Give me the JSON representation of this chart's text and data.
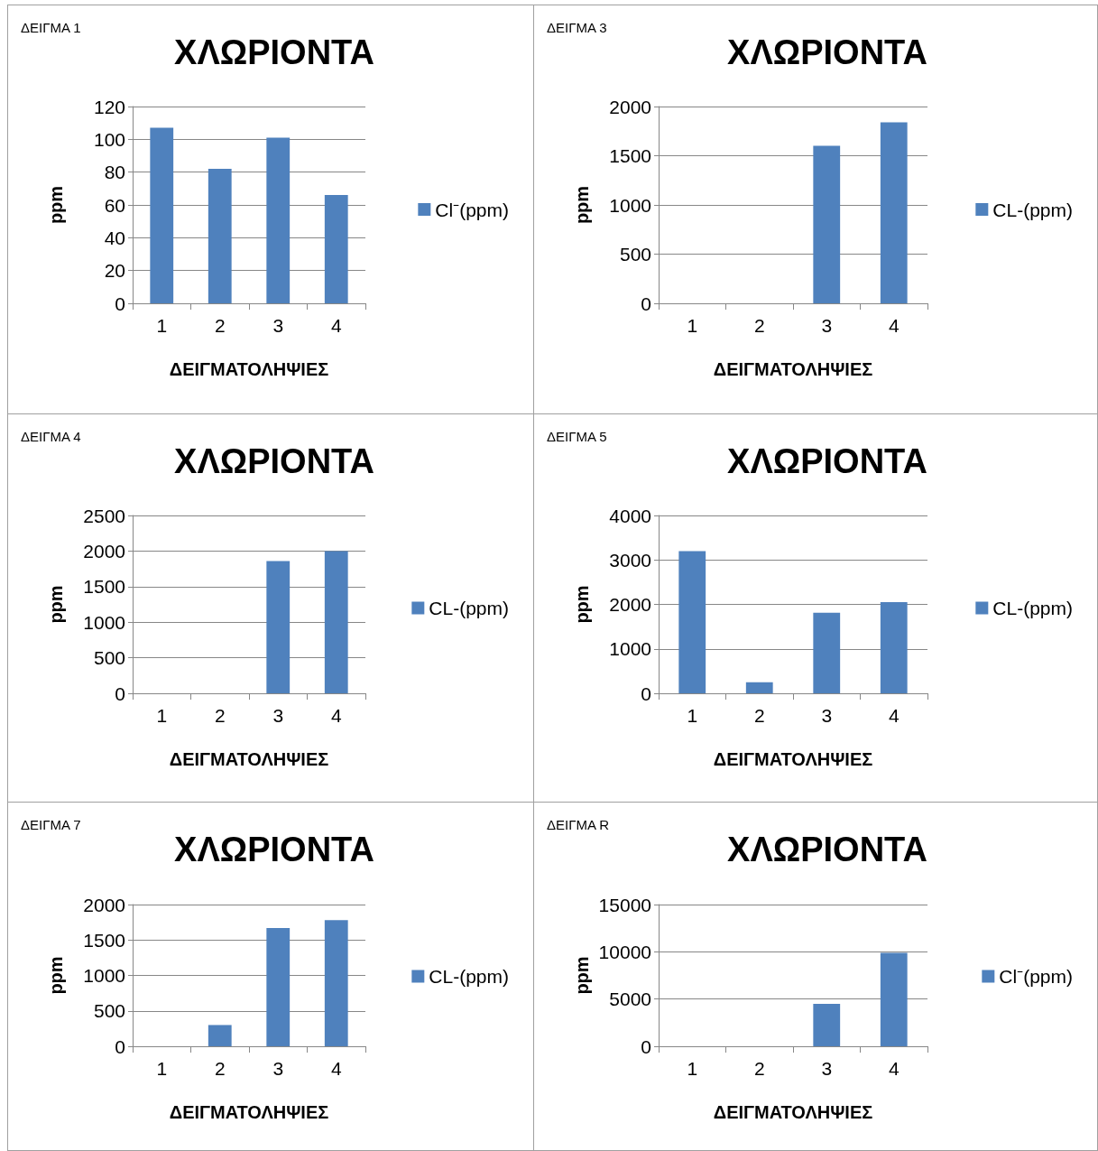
{
  "chart_data": [
    {
      "type": "bar",
      "subtitle": "ΔΕΙΓΜΑ 1",
      "title": "ΧΛΩΡΙΟΝΤΑ",
      "xlabel": "ΔΕΙΓΜΑΤΟΛΗΨΙΕΣ",
      "ylabel": "ppm",
      "categories": [
        "1",
        "2",
        "3",
        "4"
      ],
      "series": [
        {
          "name": "Cl⁻(ppm)",
          "color": "#4f81bd",
          "values": [
            107,
            82,
            101,
            66
          ]
        }
      ],
      "ylim": [
        0,
        120
      ],
      "yticks": [
        0,
        20,
        40,
        60,
        80,
        100,
        120
      ],
      "grid": "y",
      "legend": "right"
    },
    {
      "type": "bar",
      "subtitle": "ΔΕΙΓΜΑ 3",
      "title": "ΧΛΩΡΙΟΝΤΑ",
      "xlabel": "ΔΕΙΓΜΑΤΟΛΗΨΙΕΣ",
      "ylabel": "ppm",
      "categories": [
        "1",
        "2",
        "3",
        "4"
      ],
      "series": [
        {
          "name": "CL-(ppm)",
          "color": "#4f81bd",
          "values": [
            0,
            0,
            1600,
            1840
          ]
        }
      ],
      "ylim": [
        0,
        2000
      ],
      "yticks": [
        0,
        500,
        1000,
        1500,
        2000
      ],
      "grid": "y",
      "legend": "right"
    },
    {
      "type": "bar",
      "subtitle": "ΔΕΙΓΜΑ 4",
      "title": "ΧΛΩΡΙΟΝΤΑ",
      "xlabel": "ΔΕΙΓΜΑΤΟΛΗΨΙΕΣ",
      "ylabel": "ppm",
      "categories": [
        "1",
        "2",
        "3",
        "4"
      ],
      "series": [
        {
          "name": "CL-(ppm)",
          "color": "#4f81bd",
          "values": [
            0,
            0,
            1860,
            2000
          ]
        }
      ],
      "ylim": [
        0,
        2500
      ],
      "yticks": [
        0,
        500,
        1000,
        1500,
        2000,
        2500
      ],
      "grid": "y",
      "legend": "right"
    },
    {
      "type": "bar",
      "subtitle": "ΔΕΙΓΜΑ 5",
      "title": "ΧΛΩΡΙΟΝΤΑ",
      "xlabel": "ΔΕΙΓΜΑΤΟΛΗΨΙΕΣ",
      "ylabel": "ppm",
      "categories": [
        "1",
        "2",
        "3",
        "4"
      ],
      "series": [
        {
          "name": "CL-(ppm)",
          "color": "#4f81bd",
          "values": [
            3200,
            250,
            1810,
            2050
          ]
        }
      ],
      "ylim": [
        0,
        4000
      ],
      "yticks": [
        0,
        1000,
        2000,
        3000,
        4000
      ],
      "grid": "y",
      "legend": "right"
    },
    {
      "type": "bar",
      "subtitle": "ΔΕΙΓΜΑ 7",
      "title": "ΧΛΩΡΙΟΝΤΑ",
      "xlabel": "ΔΕΙΓΜΑΤΟΛΗΨΙΕΣ",
      "ylabel": "ppm",
      "categories": [
        "1",
        "2",
        "3",
        "4"
      ],
      "series": [
        {
          "name": "CL-(ppm)",
          "color": "#4f81bd",
          "values": [
            0,
            300,
            1670,
            1780
          ]
        }
      ],
      "ylim": [
        0,
        2000
      ],
      "yticks": [
        0,
        500,
        1000,
        1500,
        2000
      ],
      "grid": "y",
      "legend": "right"
    },
    {
      "type": "bar",
      "subtitle": "ΔΕΙΓΜΑ R",
      "title": "ΧΛΩΡΙΟΝΤΑ",
      "xlabel": "ΔΕΙΓΜΑΤΟΛΗΨΙΕΣ",
      "ylabel": "ppm",
      "categories": [
        "1",
        "2",
        "3",
        "4"
      ],
      "series": [
        {
          "name": "Cl⁻(ppm)",
          "color": "#4f81bd",
          "values": [
            0,
            0,
            4500,
            9900
          ]
        }
      ],
      "ylim": [
        0,
        15000
      ],
      "yticks": [
        0,
        5000,
        10000,
        15000
      ],
      "grid": "y",
      "legend": "right"
    }
  ]
}
